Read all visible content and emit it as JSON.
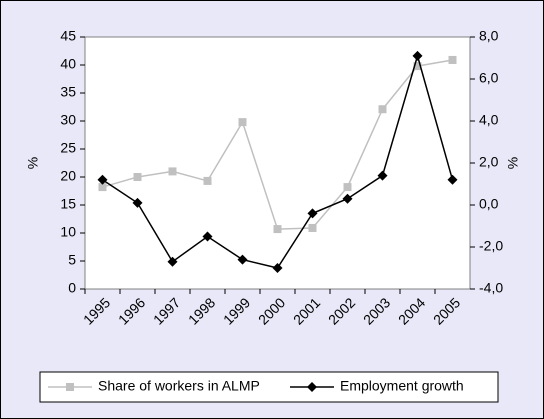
{
  "chart_data": {
    "type": "line",
    "categories": [
      "1995",
      "1996",
      "1997",
      "1998",
      "1999",
      "2000",
      "2001",
      "2002",
      "2003",
      "2004",
      "2005"
    ],
    "series": [
      {
        "name": "Share of workers in ALMP",
        "color": "#c0c0c0",
        "marker": "square",
        "axis": "y",
        "values": [
          18.2,
          20.0,
          21.0,
          19.3,
          29.8,
          10.7,
          10.9,
          18.2,
          32.1,
          39.8,
          40.9
        ]
      },
      {
        "name": "Employment growth",
        "color": "#000000",
        "marker": "diamond",
        "axis": "y2",
        "values": [
          1.2,
          0.1,
          -2.7,
          -1.5,
          -2.6,
          -3.0,
          -0.4,
          0.3,
          1.4,
          7.1,
          1.2
        ]
      }
    ],
    "ylabel": "%",
    "y2label": "%",
    "ylim": [
      0,
      45
    ],
    "yticks": [
      0,
      5,
      10,
      15,
      20,
      25,
      30,
      35,
      40,
      45
    ],
    "y2lim": [
      -4,
      8
    ],
    "y2ticks": [
      {
        "value": -4,
        "label": "-4,0"
      },
      {
        "value": -2,
        "label": "-2,0"
      },
      {
        "value": 0,
        "label": "0,0"
      },
      {
        "value": 2,
        "label": "2,0"
      },
      {
        "value": 4,
        "label": "4,0"
      },
      {
        "value": 6,
        "label": "6,0"
      },
      {
        "value": 8,
        "label": "8,0"
      }
    ],
    "legend": "bottom"
  }
}
